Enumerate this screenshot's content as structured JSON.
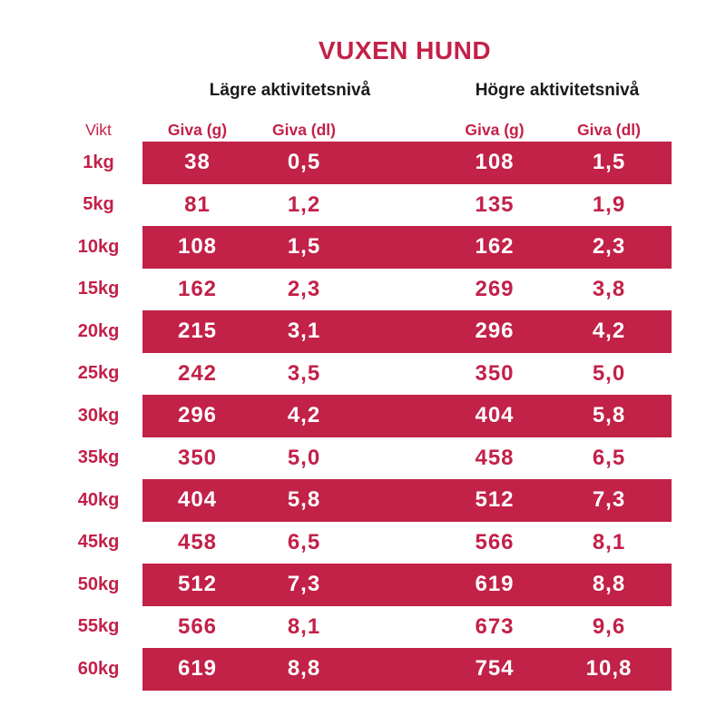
{
  "title": "VUXEN HUND",
  "colors": {
    "accent": "#C22148",
    "band_text": "#FFFFFF",
    "group_header_text": "#1A1A1A",
    "background": "#FFFFFF"
  },
  "groups": {
    "lower": "Lägre aktivitetsnivå",
    "higher": "Högre aktivitetsnivå"
  },
  "columns": {
    "weight": "Vikt",
    "lower": [
      "Giva (g)",
      "Giva (dl)"
    ],
    "higher": [
      "Giva (g)",
      "Giva (dl)"
    ]
  },
  "rows": [
    {
      "weight": "1kg",
      "low_g": "38",
      "low_dl": "0,5",
      "high_g": "108",
      "high_dl": "1,5",
      "band": true
    },
    {
      "weight": "5kg",
      "low_g": "81",
      "low_dl": "1,2",
      "high_g": "135",
      "high_dl": "1,9",
      "band": false
    },
    {
      "weight": "10kg",
      "low_g": "108",
      "low_dl": "1,5",
      "high_g": "162",
      "high_dl": "2,3",
      "band": true
    },
    {
      "weight": "15kg",
      "low_g": "162",
      "low_dl": "2,3",
      "high_g": "269",
      "high_dl": "3,8",
      "band": false
    },
    {
      "weight": "20kg",
      "low_g": "215",
      "low_dl": "3,1",
      "high_g": "296",
      "high_dl": "4,2",
      "band": true
    },
    {
      "weight": "25kg",
      "low_g": "242",
      "low_dl": "3,5",
      "high_g": "350",
      "high_dl": "5,0",
      "band": false
    },
    {
      "weight": "30kg",
      "low_g": "296",
      "low_dl": "4,2",
      "high_g": "404",
      "high_dl": "5,8",
      "band": true
    },
    {
      "weight": "35kg",
      "low_g": "350",
      "low_dl": "5,0",
      "high_g": "458",
      "high_dl": "6,5",
      "band": false
    },
    {
      "weight": "40kg",
      "low_g": "404",
      "low_dl": "5,8",
      "high_g": "512",
      "high_dl": "7,3",
      "band": true
    },
    {
      "weight": "45kg",
      "low_g": "458",
      "low_dl": "6,5",
      "high_g": "566",
      "high_dl": "8,1",
      "band": false
    },
    {
      "weight": "50kg",
      "low_g": "512",
      "low_dl": "7,3",
      "high_g": "619",
      "high_dl": "8,8",
      "band": true
    },
    {
      "weight": "55kg",
      "low_g": "566",
      "low_dl": "8,1",
      "high_g": "673",
      "high_dl": "9,6",
      "band": false
    },
    {
      "weight": "60kg",
      "low_g": "619",
      "low_dl": "8,8",
      "high_g": "754",
      "high_dl": "10,8",
      "band": true
    }
  ],
  "chart_data": {
    "type": "table",
    "title": "VUXEN HUND",
    "column_groups": [
      "Lägre aktivitetsnivå",
      "Högre aktivitetsnivå"
    ],
    "columns": [
      "Vikt",
      "Giva (g)",
      "Giva (dl)",
      "Giva (g)",
      "Giva (dl)"
    ],
    "rows": [
      [
        "1kg",
        "38",
        "0,5",
        "108",
        "1,5"
      ],
      [
        "5kg",
        "81",
        "1,2",
        "135",
        "1,9"
      ],
      [
        "10kg",
        "108",
        "1,5",
        "162",
        "2,3"
      ],
      [
        "15kg",
        "162",
        "2,3",
        "269",
        "3,8"
      ],
      [
        "20kg",
        "215",
        "3,1",
        "296",
        "4,2"
      ],
      [
        "25kg",
        "242",
        "3,5",
        "350",
        "5,0"
      ],
      [
        "30kg",
        "296",
        "4,2",
        "404",
        "5,8"
      ],
      [
        "35kg",
        "350",
        "5,0",
        "458",
        "6,5"
      ],
      [
        "40kg",
        "404",
        "5,8",
        "512",
        "7,3"
      ],
      [
        "45kg",
        "458",
        "6,5",
        "566",
        "8,1"
      ],
      [
        "50kg",
        "512",
        "7,3",
        "619",
        "8,8"
      ],
      [
        "55kg",
        "566",
        "8,1",
        "673",
        "9,6"
      ],
      [
        "60kg",
        "619",
        "8,8",
        "754",
        "10,8"
      ]
    ]
  }
}
